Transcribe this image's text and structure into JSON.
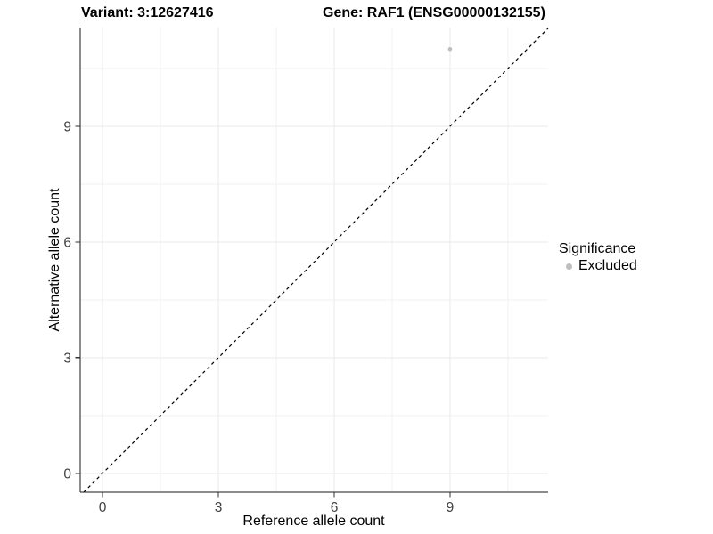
{
  "chart_data": {
    "type": "scatter",
    "title_left": "Variant: 3:12627416",
    "title_right": "Gene: RAF1 (ENSG00000132155)",
    "xlabel": "Reference allele count",
    "ylabel": "Alternative allele count",
    "x_ticks": [
      0,
      3,
      6,
      9
    ],
    "y_ticks": [
      0,
      3,
      6,
      9
    ],
    "x_minor_ticks": [
      1.5,
      4.5,
      7.5,
      10.5
    ],
    "y_minor_ticks": [
      1.5,
      4.5,
      7.5,
      10.5
    ],
    "xlim": [
      -0.58,
      11.54
    ],
    "ylim": [
      -0.49,
      11.56
    ],
    "grid": true,
    "legend_position": "right",
    "legend_title": "Significance",
    "identity_line": {
      "style": "dashed",
      "equation": "y = x",
      "color": "#000000"
    },
    "series": [
      {
        "name": "Excluded",
        "color": "#bebebe",
        "points": [
          {
            "x": 9,
            "y": 11
          }
        ]
      }
    ]
  },
  "style": {
    "background": "#ffffff",
    "grid_major_color": "#e9e9e9",
    "grid_minor_color": "#f2f2f2",
    "axis_color": "#1a1a1a",
    "tick_color": "#333333",
    "tick_label_color": "#404040",
    "text_color": "#000000"
  }
}
